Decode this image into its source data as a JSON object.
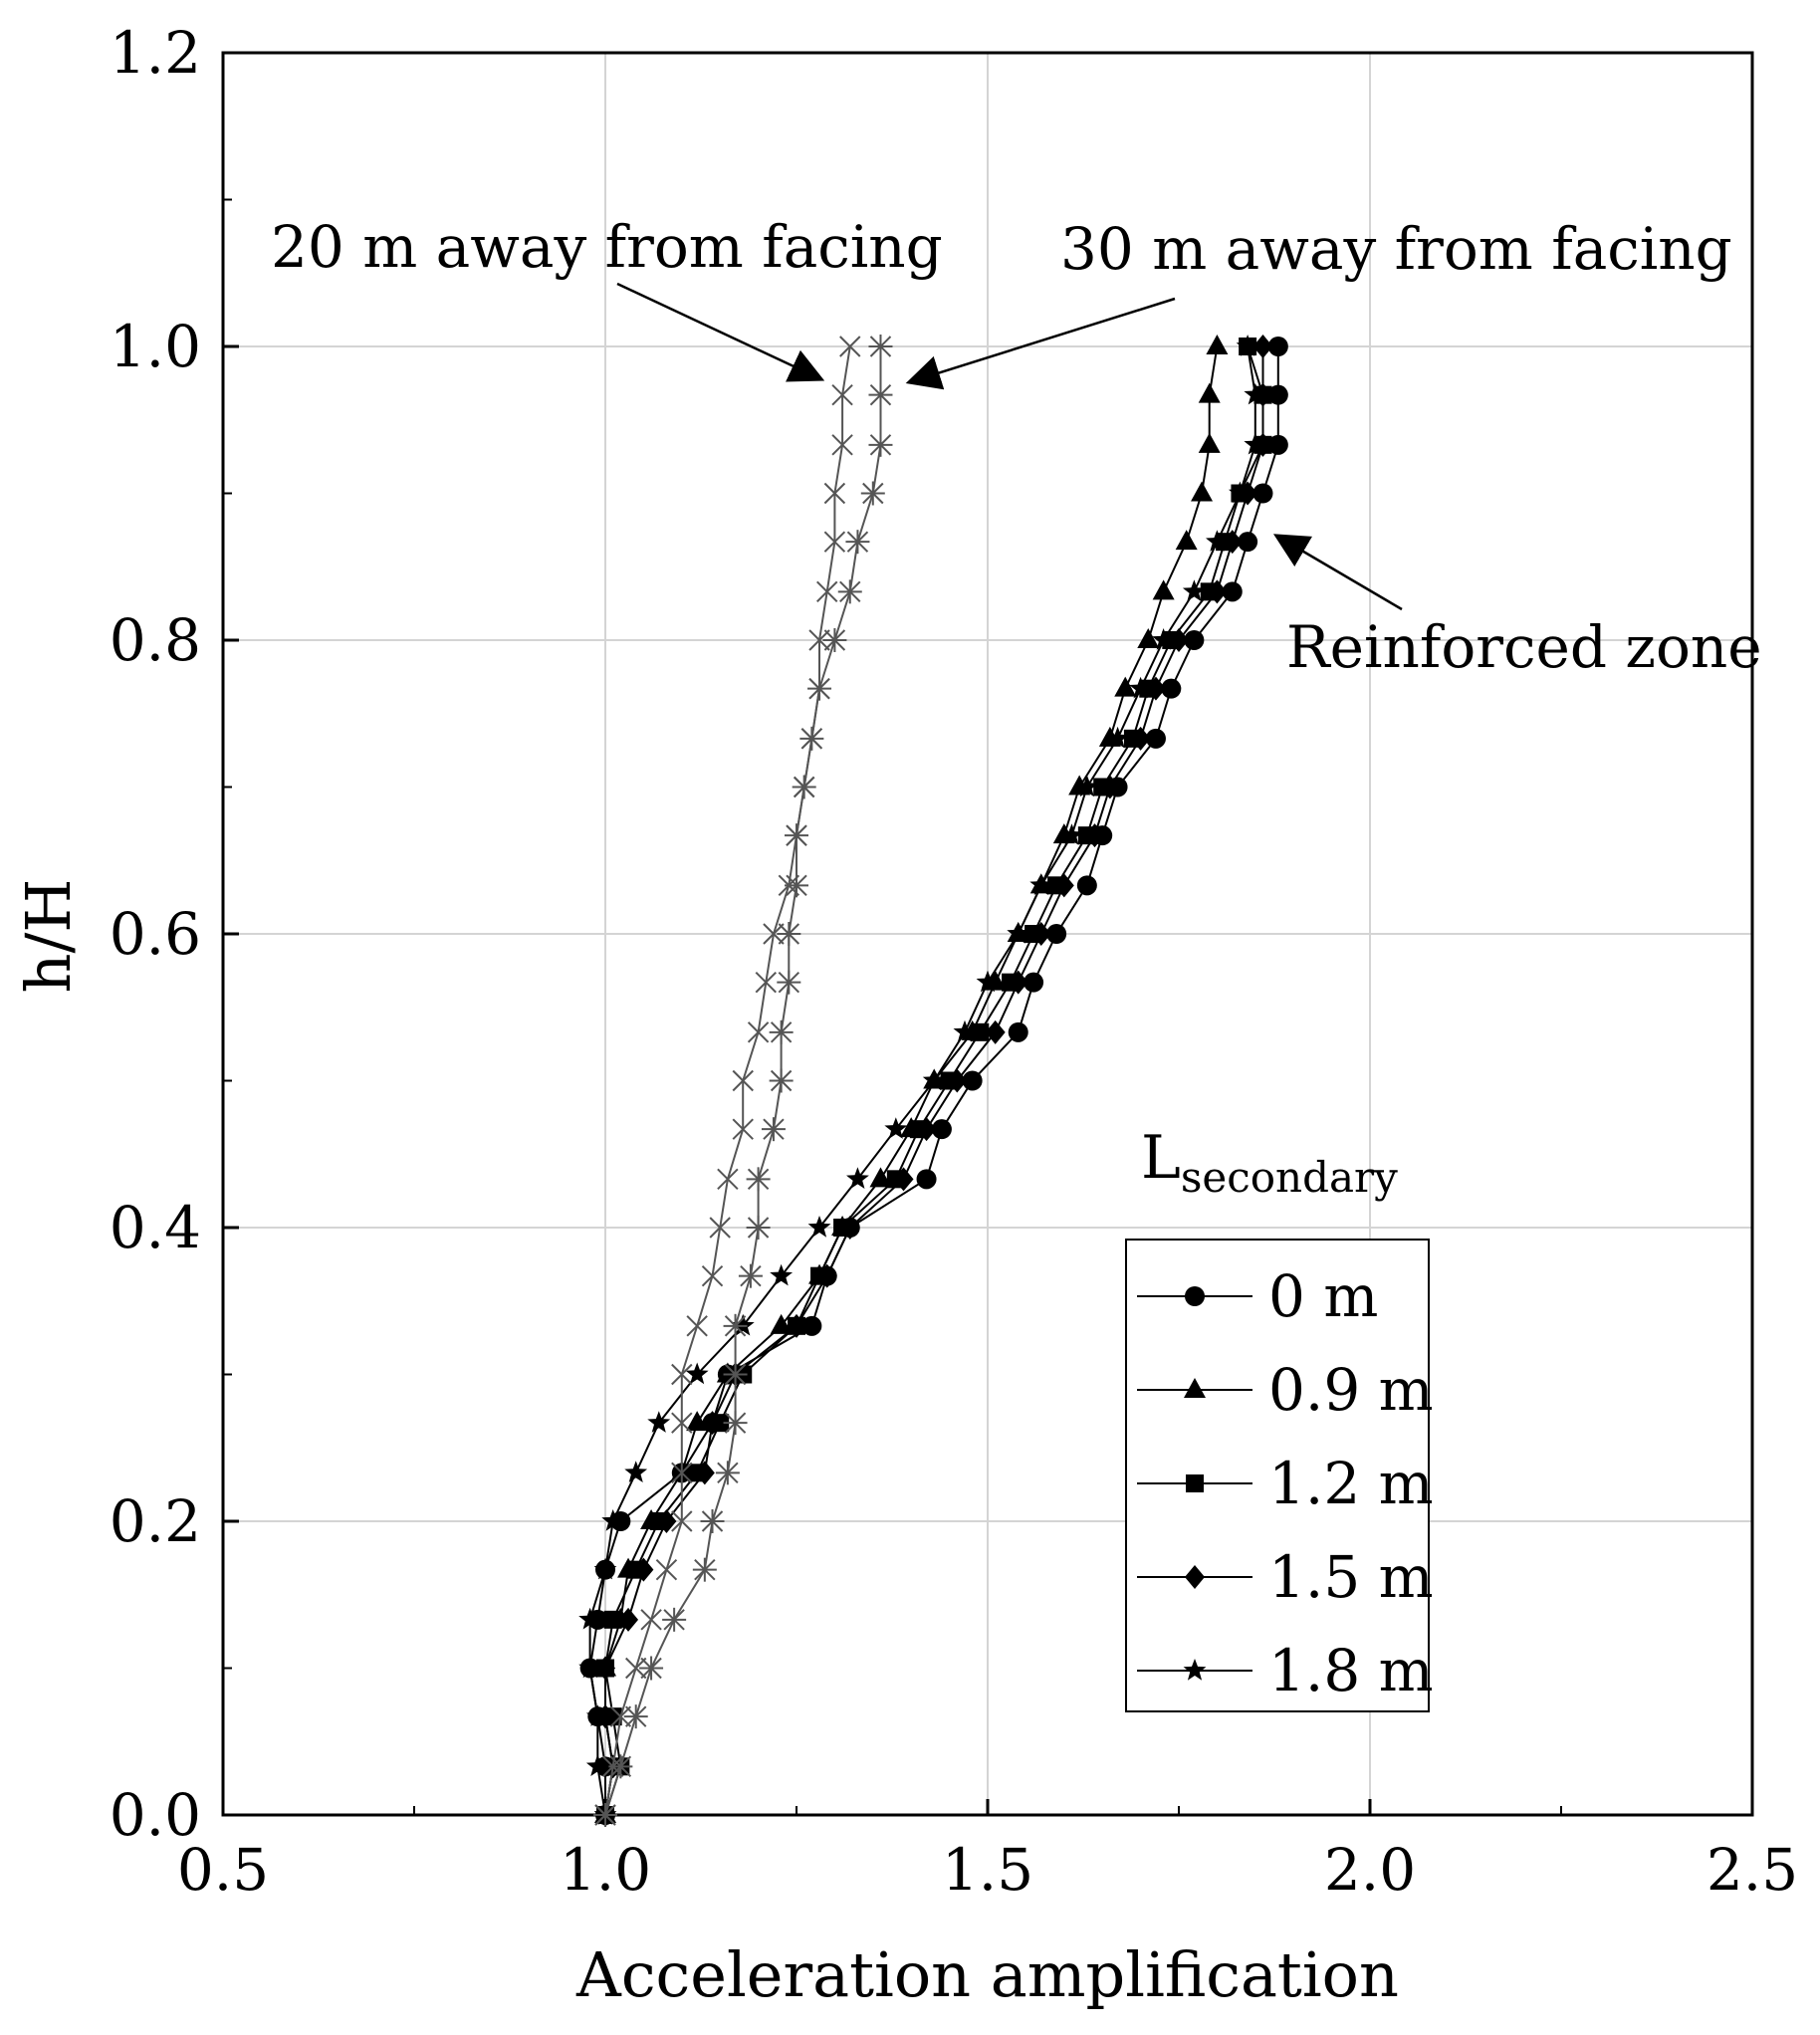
{
  "chart_data": {
    "type": "line",
    "title": "",
    "xlabel": "Acceleration amplification",
    "ylabel": "h/H",
    "xlim": [
      0.5,
      2.5
    ],
    "ylim": [
      0.0,
      1.2
    ],
    "xticks": [
      "0.5",
      "1.0",
      "1.5",
      "2.0",
      "2.5"
    ],
    "yticks": [
      "0.0",
      "0.2",
      "0.4",
      "0.6",
      "0.8",
      "1.0",
      "1.2"
    ],
    "grid": true,
    "legend": {
      "title_main": "L",
      "title_sub": "secondary",
      "position": "lower-right",
      "entries": [
        "0 m",
        "0.9 m",
        "1.2 m",
        "1.5 m",
        "1.8 m"
      ]
    },
    "annotations": [
      {
        "id": "ann-20m",
        "text": "20 m away from facing",
        "target": [
          1.31,
          0.985
        ]
      },
      {
        "id": "ann-30m",
        "text": "30 m away from facing",
        "target": [
          1.37,
          0.985
        ]
      },
      {
        "id": "ann-reinforced",
        "text": "Reinforced zone",
        "target": [
          1.87,
          0.87
        ]
      }
    ],
    "series": [
      {
        "name": "0 m",
        "marker": "circle",
        "color": "#000000",
        "points": [
          [
            1.0,
            0.0
          ],
          [
            1.0,
            0.033
          ],
          [
            0.99,
            0.067
          ],
          [
            0.98,
            0.1
          ],
          [
            0.99,
            0.133
          ],
          [
            1.0,
            0.167
          ],
          [
            1.02,
            0.2
          ],
          [
            1.1,
            0.233
          ],
          [
            1.14,
            0.267
          ],
          [
            1.16,
            0.3
          ],
          [
            1.27,
            0.333
          ],
          [
            1.29,
            0.367
          ],
          [
            1.32,
            0.4
          ],
          [
            1.42,
            0.433
          ],
          [
            1.44,
            0.467
          ],
          [
            1.48,
            0.5
          ],
          [
            1.54,
            0.533
          ],
          [
            1.56,
            0.567
          ],
          [
            1.59,
            0.6
          ],
          [
            1.63,
            0.633
          ],
          [
            1.65,
            0.667
          ],
          [
            1.67,
            0.7
          ],
          [
            1.72,
            0.733
          ],
          [
            1.74,
            0.767
          ],
          [
            1.77,
            0.8
          ],
          [
            1.82,
            0.833
          ],
          [
            1.84,
            0.867
          ],
          [
            1.86,
            0.9
          ],
          [
            1.88,
            0.933
          ],
          [
            1.88,
            0.967
          ],
          [
            1.88,
            1.0
          ]
        ]
      },
      {
        "name": "0.9 m",
        "marker": "triangle",
        "color": "#000000",
        "points": [
          [
            1.0,
            0.0
          ],
          [
            1.01,
            0.033
          ],
          [
            1.0,
            0.067
          ],
          [
            1.0,
            0.1
          ],
          [
            1.02,
            0.133
          ],
          [
            1.03,
            0.167
          ],
          [
            1.06,
            0.2
          ],
          [
            1.1,
            0.233
          ],
          [
            1.12,
            0.267
          ],
          [
            1.16,
            0.3
          ],
          [
            1.23,
            0.333
          ],
          [
            1.28,
            0.367
          ],
          [
            1.31,
            0.4
          ],
          [
            1.36,
            0.433
          ],
          [
            1.4,
            0.467
          ],
          [
            1.43,
            0.5
          ],
          [
            1.48,
            0.533
          ],
          [
            1.51,
            0.567
          ],
          [
            1.54,
            0.6
          ],
          [
            1.57,
            0.633
          ],
          [
            1.6,
            0.667
          ],
          [
            1.62,
            0.7
          ],
          [
            1.66,
            0.733
          ],
          [
            1.68,
            0.767
          ],
          [
            1.71,
            0.8
          ],
          [
            1.73,
            0.833
          ],
          [
            1.76,
            0.867
          ],
          [
            1.78,
            0.9
          ],
          [
            1.79,
            0.933
          ],
          [
            1.79,
            0.967
          ],
          [
            1.8,
            1.0
          ]
        ]
      },
      {
        "name": "1.2 m",
        "marker": "square",
        "color": "#000000",
        "points": [
          [
            1.0,
            0.0
          ],
          [
            1.02,
            0.033
          ],
          [
            1.01,
            0.067
          ],
          [
            1.0,
            0.1
          ],
          [
            1.01,
            0.133
          ],
          [
            1.04,
            0.167
          ],
          [
            1.07,
            0.2
          ],
          [
            1.12,
            0.233
          ],
          [
            1.15,
            0.267
          ],
          [
            1.18,
            0.3
          ],
          [
            1.25,
            0.333
          ],
          [
            1.28,
            0.367
          ],
          [
            1.31,
            0.4
          ],
          [
            1.38,
            0.433
          ],
          [
            1.41,
            0.467
          ],
          [
            1.45,
            0.5
          ],
          [
            1.49,
            0.533
          ],
          [
            1.53,
            0.567
          ],
          [
            1.56,
            0.6
          ],
          [
            1.59,
            0.633
          ],
          [
            1.63,
            0.667
          ],
          [
            1.65,
            0.7
          ],
          [
            1.69,
            0.733
          ],
          [
            1.71,
            0.767
          ],
          [
            1.74,
            0.8
          ],
          [
            1.79,
            0.833
          ],
          [
            1.81,
            0.867
          ],
          [
            1.83,
            0.9
          ],
          [
            1.86,
            0.933
          ],
          [
            1.86,
            0.967
          ],
          [
            1.84,
            1.0
          ]
        ]
      },
      {
        "name": "1.5 m",
        "marker": "diamond",
        "color": "#000000",
        "points": [
          [
            1.0,
            0.0
          ],
          [
            1.01,
            0.033
          ],
          [
            1.0,
            0.067
          ],
          [
            1.0,
            0.1
          ],
          [
            1.03,
            0.133
          ],
          [
            1.05,
            0.167
          ],
          [
            1.08,
            0.2
          ],
          [
            1.13,
            0.233
          ],
          [
            1.14,
            0.267
          ],
          [
            1.17,
            0.3
          ],
          [
            1.25,
            0.333
          ],
          [
            1.29,
            0.367
          ],
          [
            1.32,
            0.4
          ],
          [
            1.39,
            0.433
          ],
          [
            1.42,
            0.467
          ],
          [
            1.46,
            0.5
          ],
          [
            1.51,
            0.533
          ],
          [
            1.54,
            0.567
          ],
          [
            1.57,
            0.6
          ],
          [
            1.6,
            0.633
          ],
          [
            1.64,
            0.667
          ],
          [
            1.66,
            0.7
          ],
          [
            1.7,
            0.733
          ],
          [
            1.72,
            0.767
          ],
          [
            1.75,
            0.8
          ],
          [
            1.8,
            0.833
          ],
          [
            1.82,
            0.867
          ],
          [
            1.84,
            0.9
          ],
          [
            1.86,
            0.933
          ],
          [
            1.86,
            0.967
          ],
          [
            1.86,
            1.0
          ]
        ]
      },
      {
        "name": "1.8 m",
        "marker": "star",
        "color": "#000000",
        "points": [
          [
            1.0,
            0.0
          ],
          [
            0.99,
            0.033
          ],
          [
            0.99,
            0.067
          ],
          [
            0.98,
            0.1
          ],
          [
            0.98,
            0.133
          ],
          [
            1.0,
            0.167
          ],
          [
            1.01,
            0.2
          ],
          [
            1.04,
            0.233
          ],
          [
            1.07,
            0.267
          ],
          [
            1.12,
            0.3
          ],
          [
            1.18,
            0.333
          ],
          [
            1.23,
            0.367
          ],
          [
            1.28,
            0.4
          ],
          [
            1.33,
            0.433
          ],
          [
            1.38,
            0.467
          ],
          [
            1.43,
            0.5
          ],
          [
            1.47,
            0.533
          ],
          [
            1.5,
            0.567
          ],
          [
            1.54,
            0.6
          ],
          [
            1.57,
            0.633
          ],
          [
            1.61,
            0.667
          ],
          [
            1.63,
            0.7
          ],
          [
            1.67,
            0.733
          ],
          [
            1.7,
            0.767
          ],
          [
            1.73,
            0.8
          ],
          [
            1.77,
            0.833
          ],
          [
            1.8,
            0.867
          ],
          [
            1.83,
            0.9
          ],
          [
            1.85,
            0.933
          ],
          [
            1.85,
            0.967
          ],
          [
            1.84,
            1.0
          ]
        ]
      },
      {
        "name": "20 m away from facing",
        "marker": "x",
        "color": "#555555",
        "points": [
          [
            1.0,
            0.0
          ],
          [
            1.01,
            0.033
          ],
          [
            1.02,
            0.067
          ],
          [
            1.04,
            0.1
          ],
          [
            1.06,
            0.133
          ],
          [
            1.08,
            0.167
          ],
          [
            1.1,
            0.2
          ],
          [
            1.1,
            0.233
          ],
          [
            1.1,
            0.267
          ],
          [
            1.1,
            0.3
          ],
          [
            1.12,
            0.333
          ],
          [
            1.14,
            0.367
          ],
          [
            1.15,
            0.4
          ],
          [
            1.16,
            0.433
          ],
          [
            1.18,
            0.467
          ],
          [
            1.18,
            0.5
          ],
          [
            1.2,
            0.533
          ],
          [
            1.21,
            0.567
          ],
          [
            1.22,
            0.6
          ],
          [
            1.24,
            0.633
          ],
          [
            1.25,
            0.667
          ],
          [
            1.26,
            0.7
          ],
          [
            1.27,
            0.733
          ],
          [
            1.28,
            0.767
          ],
          [
            1.28,
            0.8
          ],
          [
            1.29,
            0.833
          ],
          [
            1.3,
            0.867
          ],
          [
            1.3,
            0.9
          ],
          [
            1.31,
            0.933
          ],
          [
            1.31,
            0.967
          ],
          [
            1.32,
            1.0
          ]
        ]
      },
      {
        "name": "30 m away from facing",
        "marker": "asterisk",
        "color": "#555555",
        "points": [
          [
            1.0,
            0.0
          ],
          [
            1.02,
            0.033
          ],
          [
            1.04,
            0.067
          ],
          [
            1.06,
            0.1
          ],
          [
            1.09,
            0.133
          ],
          [
            1.13,
            0.167
          ],
          [
            1.14,
            0.2
          ],
          [
            1.16,
            0.233
          ],
          [
            1.17,
            0.267
          ],
          [
            1.17,
            0.3
          ],
          [
            1.17,
            0.333
          ],
          [
            1.19,
            0.367
          ],
          [
            1.2,
            0.4
          ],
          [
            1.2,
            0.433
          ],
          [
            1.22,
            0.467
          ],
          [
            1.23,
            0.5
          ],
          [
            1.23,
            0.533
          ],
          [
            1.24,
            0.567
          ],
          [
            1.24,
            0.6
          ],
          [
            1.25,
            0.633
          ],
          [
            1.25,
            0.667
          ],
          [
            1.26,
            0.7
          ],
          [
            1.27,
            0.733
          ],
          [
            1.28,
            0.767
          ],
          [
            1.3,
            0.8
          ],
          [
            1.32,
            0.833
          ],
          [
            1.33,
            0.867
          ],
          [
            1.35,
            0.9
          ],
          [
            1.36,
            0.933
          ],
          [
            1.36,
            0.967
          ],
          [
            1.36,
            1.0
          ]
        ]
      }
    ]
  }
}
